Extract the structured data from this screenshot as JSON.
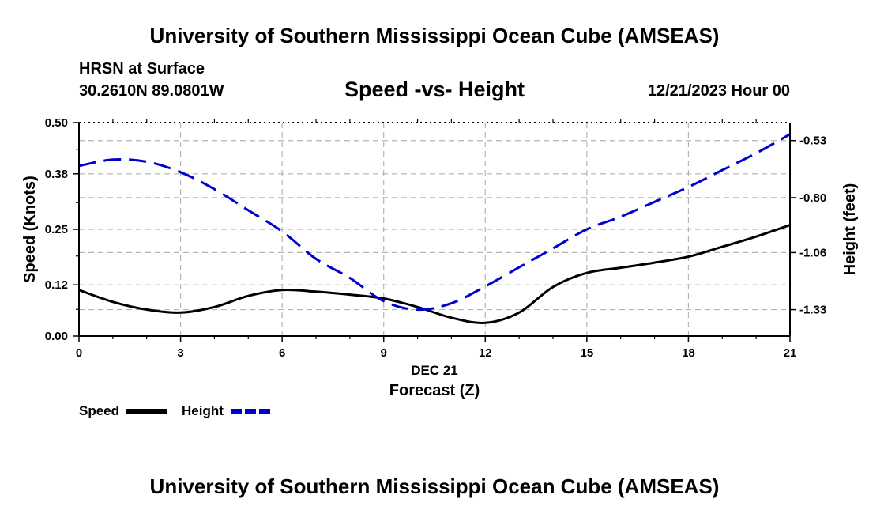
{
  "header": {
    "title": "University of Southern Mississippi Ocean Cube (AMSEAS)",
    "station_name": "HRSN at Surface",
    "coordinates": "30.2610N  89.0801W",
    "subtitle": "Speed -vs- Height",
    "datetime": "12/21/2023 Hour 00"
  },
  "footer": {
    "title": "University of Southern Mississippi Ocean Cube (AMSEAS)"
  },
  "colors": {
    "speed": "#000000",
    "height": "#0000cc",
    "grid": "#b4b4b4"
  },
  "chart_data": {
    "type": "line",
    "title": "Speed -vs- Height",
    "xlabel_date": "DEC 21",
    "xlabel": "Forecast (Z)",
    "ylabel_left": "Speed (Knots)",
    "ylabel_right": "Height (feet)",
    "xlim": [
      0,
      21
    ],
    "ylim_left": [
      0,
      0.5
    ],
    "ylim_right": [
      -1.455,
      -0.445
    ],
    "x_ticks": [
      "0",
      "3",
      "6",
      "9",
      "12",
      "15",
      "18",
      "21"
    ],
    "y_left_ticks": [
      "0.00",
      "0.12",
      "0.25",
      "0.38",
      "0.50"
    ],
    "y_right_ticks": [
      "-0.53",
      "-0.80",
      "-1.06",
      "-1.33"
    ],
    "grid": true,
    "legend": [
      {
        "label": "Speed",
        "series": "speed"
      },
      {
        "label": "Height",
        "series": "height"
      }
    ],
    "series": [
      {
        "name": "Speed",
        "axis": "left",
        "style": "solid",
        "x": [
          0,
          1,
          2,
          3,
          4,
          5,
          6,
          7,
          8,
          9,
          10,
          11,
          12,
          13,
          14,
          15,
          16,
          17,
          18,
          19,
          20,
          21
        ],
        "values": [
          0.108,
          0.08,
          0.062,
          0.055,
          0.068,
          0.094,
          0.108,
          0.104,
          0.097,
          0.088,
          0.068,
          0.043,
          0.031,
          0.055,
          0.115,
          0.148,
          0.16,
          0.172,
          0.186,
          0.209,
          0.233,
          0.26
        ]
      },
      {
        "name": "Height",
        "axis": "right",
        "style": "dashed",
        "x": [
          0,
          1,
          2,
          3,
          4,
          5,
          6,
          7,
          8,
          9,
          10,
          11,
          12,
          13,
          14,
          15,
          16,
          17,
          18,
          19,
          20,
          21
        ],
        "values": [
          -0.65,
          -0.62,
          -0.63,
          -0.68,
          -0.76,
          -0.86,
          -0.96,
          -1.09,
          -1.18,
          -1.29,
          -1.33,
          -1.3,
          -1.22,
          -1.13,
          -1.04,
          -0.95,
          -0.89,
          -0.82,
          -0.75,
          -0.67,
          -0.59,
          -0.5
        ]
      }
    ]
  }
}
